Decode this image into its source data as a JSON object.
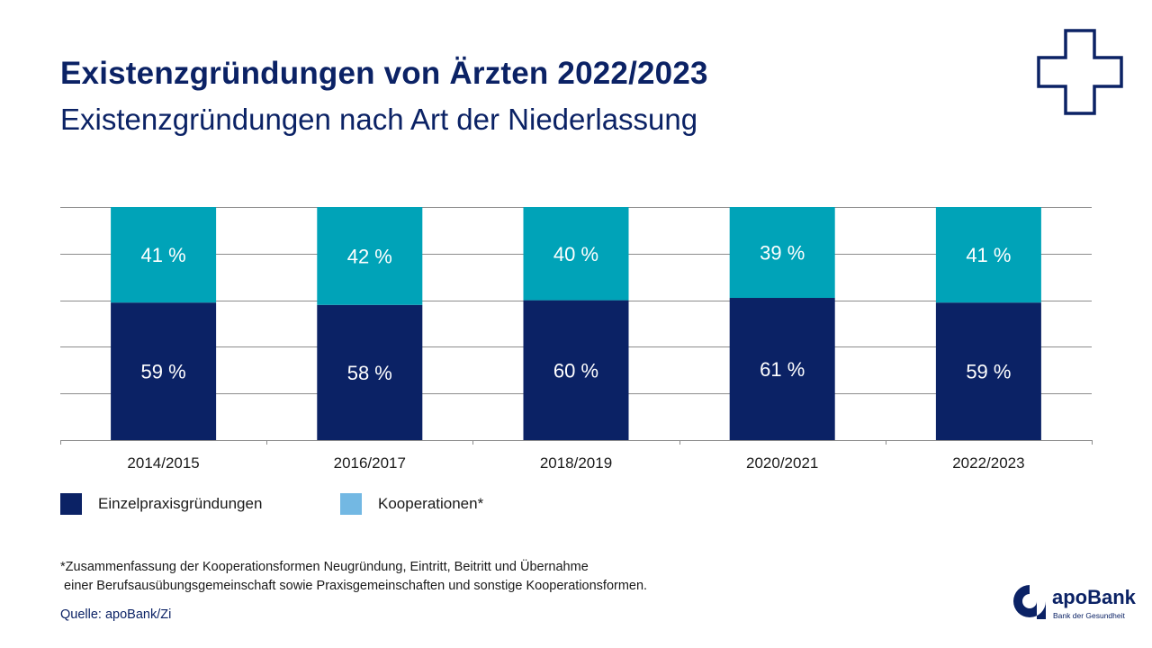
{
  "header": {
    "title": "Existenzgründungen von Ärzten 2022/2023",
    "subtitle": "Existenzgründungen nach Art der Niederlassung"
  },
  "colors": {
    "einzel": "#0b2265",
    "kooperation": "#00a3b8",
    "legend_kooperation": "#73b8e3",
    "grid": "#8c8c8c",
    "bar_label": "#ffffff"
  },
  "chart_data": {
    "type": "bar",
    "stacked": true,
    "normalized": true,
    "categories": [
      "2014/2015",
      "2016/2017",
      "2018/2019",
      "2020/2021",
      "2022/2023"
    ],
    "series": [
      {
        "name": "Einzelpraxisgründungen",
        "values": [
          59,
          58,
          60,
          61,
          59
        ],
        "labels": [
          "59 %",
          "58 %",
          "60 %",
          "61 %",
          "59 %"
        ]
      },
      {
        "name": "Kooperationen*",
        "values": [
          41,
          42,
          40,
          39,
          41
        ],
        "labels": [
          "41 %",
          "42 %",
          "40 %",
          "39 %",
          "41 %"
        ]
      }
    ],
    "ylim": [
      0,
      100
    ],
    "grid": true,
    "legend_position": "bottom-left"
  },
  "legend": {
    "einzel": "Einzelpraxisgründungen",
    "kooperation": "Kooperationen*"
  },
  "footnote": {
    "line1": "*Zusammenfassung der Kooperationsformen Neugründung, Eintritt, Beitritt und Übernahme",
    "line2": " einer Berufsausübungsgemeinschaft sowie Praxisgemeinschaften und sonstige Kooperationsformen."
  },
  "source": "Quelle: apoBank/Zi",
  "logo": {
    "brand": "apoBank",
    "tagline": "Bank der Gesundheit"
  }
}
